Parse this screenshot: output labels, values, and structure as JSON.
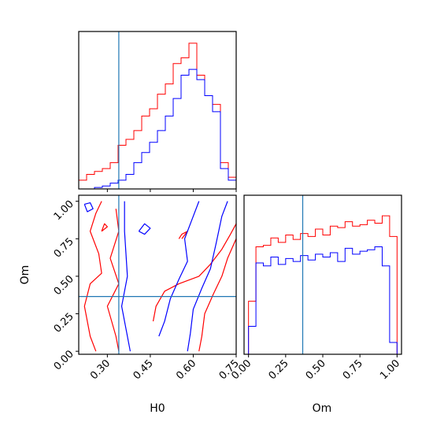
{
  "colors": {
    "run_a": "#ff0000",
    "run_b": "#0000ff",
    "truth": "#1f77b4",
    "frame": "#000000"
  },
  "chart_data": [
    {
      "name": "H0 marginal",
      "type": "histogram",
      "xlim": [
        0.2,
        0.75
      ],
      "truth": 0.34,
      "bins": [
        0.2,
        0.2275,
        0.255,
        0.2825,
        0.31,
        0.3375,
        0.365,
        0.3925,
        0.42,
        0.4475,
        0.475,
        0.5025,
        0.53,
        0.5575,
        0.585,
        0.6125,
        0.64,
        0.6675,
        0.695,
        0.7225,
        0.75
      ],
      "series": [
        {
          "color": "#ff0000",
          "values": [
            0.06,
            0.1,
            0.12,
            0.14,
            0.18,
            0.3,
            0.34,
            0.4,
            0.5,
            0.55,
            0.65,
            0.72,
            0.86,
            0.9,
            1.0,
            0.78,
            0.64,
            0.58,
            0.18,
            0.08
          ]
        },
        {
          "color": "#0000ff",
          "values": [
            0.0,
            0.0,
            0.01,
            0.02,
            0.04,
            0.06,
            0.1,
            0.18,
            0.25,
            0.32,
            0.4,
            0.5,
            0.62,
            0.78,
            0.82,
            0.75,
            0.64,
            0.53,
            0.14,
            0.06
          ]
        }
      ]
    },
    {
      "name": "Om marginal",
      "type": "histogram",
      "xlim": [
        0.0,
        1.0
      ],
      "xticks": [
        "0.00",
        "0.25",
        "0.50",
        "0.75",
        "1.00"
      ],
      "xlabel": "Om",
      "truth": 0.365,
      "bins": [
        0.0,
        0.05,
        0.1,
        0.15,
        0.2,
        0.25,
        0.3,
        0.35,
        0.4,
        0.45,
        0.5,
        0.55,
        0.6,
        0.65,
        0.7,
        0.75,
        0.8,
        0.85,
        0.9,
        0.95,
        1.0
      ],
      "series": [
        {
          "color": "#ff0000",
          "values": [
            0.36,
            0.73,
            0.74,
            0.79,
            0.76,
            0.81,
            0.78,
            0.82,
            0.8,
            0.85,
            0.81,
            0.87,
            0.86,
            0.9,
            0.87,
            0.88,
            0.91,
            0.89,
            0.94,
            0.8
          ]
        },
        {
          "color": "#0000ff",
          "values": [
            0.19,
            0.62,
            0.6,
            0.66,
            0.61,
            0.65,
            0.63,
            0.67,
            0.64,
            0.68,
            0.66,
            0.69,
            0.63,
            0.72,
            0.68,
            0.7,
            0.71,
            0.73,
            0.6,
            0.08
          ]
        }
      ]
    },
    {
      "name": "H0 vs Om joint",
      "type": "contour",
      "xlim": [
        0.2,
        0.75
      ],
      "ylim": [
        0.0,
        1.0
      ],
      "xticks": [
        "0.30",
        "0.45",
        "0.60",
        "0.75"
      ],
      "yticks": [
        "0.00",
        "0.25",
        "0.50",
        "0.75",
        "1.00"
      ],
      "xlabel": "H0",
      "ylabel": "Om",
      "truth": {
        "x": 0.34,
        "y": 0.365
      },
      "series": [
        {
          "color": "#ff0000",
          "contours": [
            [
              [
                0.28,
                1.0
              ],
              [
                0.26,
                0.92
              ],
              [
                0.24,
                0.8
              ],
              [
                0.27,
                0.65
              ],
              [
                0.28,
                0.52
              ],
              [
                0.24,
                0.45
              ],
              [
                0.22,
                0.3
              ],
              [
                0.24,
                0.1
              ],
              [
                0.26,
                0.0
              ]
            ],
            [
              [
                0.33,
                0.95
              ],
              [
                0.34,
                0.8
              ],
              [
                0.31,
                0.62
              ],
              [
                0.34,
                0.45
              ],
              [
                0.3,
                0.3
              ],
              [
                0.33,
                0.1
              ],
              [
                0.34,
                0.0
              ]
            ],
            [
              [
                0.46,
                0.2
              ],
              [
                0.47,
                0.3
              ],
              [
                0.5,
                0.4
              ],
              [
                0.55,
                0.45
              ],
              [
                0.62,
                0.5
              ],
              [
                0.66,
                0.58
              ],
              [
                0.7,
                0.68
              ],
              [
                0.73,
                0.78
              ],
              [
                0.75,
                0.85
              ]
            ],
            [
              [
                0.62,
                0.0
              ],
              [
                0.63,
                0.1
              ],
              [
                0.64,
                0.25
              ],
              [
                0.67,
                0.38
              ],
              [
                0.7,
                0.5
              ],
              [
                0.72,
                0.62
              ],
              [
                0.75,
                0.75
              ]
            ],
            [
              [
                0.55,
                0.75
              ],
              [
                0.56,
                0.78
              ],
              [
                0.58,
                0.8
              ],
              [
                0.56,
                0.75
              ]
            ],
            [
              [
                0.28,
                0.8
              ],
              [
                0.3,
                0.83
              ],
              [
                0.29,
                0.85
              ],
              [
                0.28,
                0.8
              ]
            ]
          ]
        },
        {
          "color": "#0000ff",
          "contours": [
            [
              [
                0.22,
                0.98
              ],
              [
                0.23,
                0.93
              ],
              [
                0.25,
                0.95
              ],
              [
                0.24,
                0.99
              ],
              [
                0.22,
                0.98
              ]
            ],
            [
              [
                0.36,
                1.0
              ],
              [
                0.36,
                0.8
              ],
              [
                0.37,
                0.5
              ],
              [
                0.35,
                0.3
              ],
              [
                0.37,
                0.1
              ],
              [
                0.38,
                0.0
              ]
            ],
            [
              [
                0.48,
                0.1
              ],
              [
                0.5,
                0.2
              ],
              [
                0.52,
                0.35
              ],
              [
                0.55,
                0.48
              ],
              [
                0.58,
                0.6
              ],
              [
                0.57,
                0.75
              ],
              [
                0.6,
                0.9
              ],
              [
                0.62,
                1.0
              ]
            ],
            [
              [
                0.58,
                0.0
              ],
              [
                0.59,
                0.12
              ],
              [
                0.6,
                0.28
              ],
              [
                0.63,
                0.42
              ],
              [
                0.66,
                0.55
              ],
              [
                0.68,
                0.72
              ],
              [
                0.7,
                0.9
              ],
              [
                0.72,
                1.0
              ]
            ],
            [
              [
                0.41,
                0.8
              ],
              [
                0.43,
                0.85
              ],
              [
                0.45,
                0.82
              ],
              [
                0.43,
                0.78
              ],
              [
                0.41,
                0.8
              ]
            ]
          ]
        }
      ]
    }
  ]
}
